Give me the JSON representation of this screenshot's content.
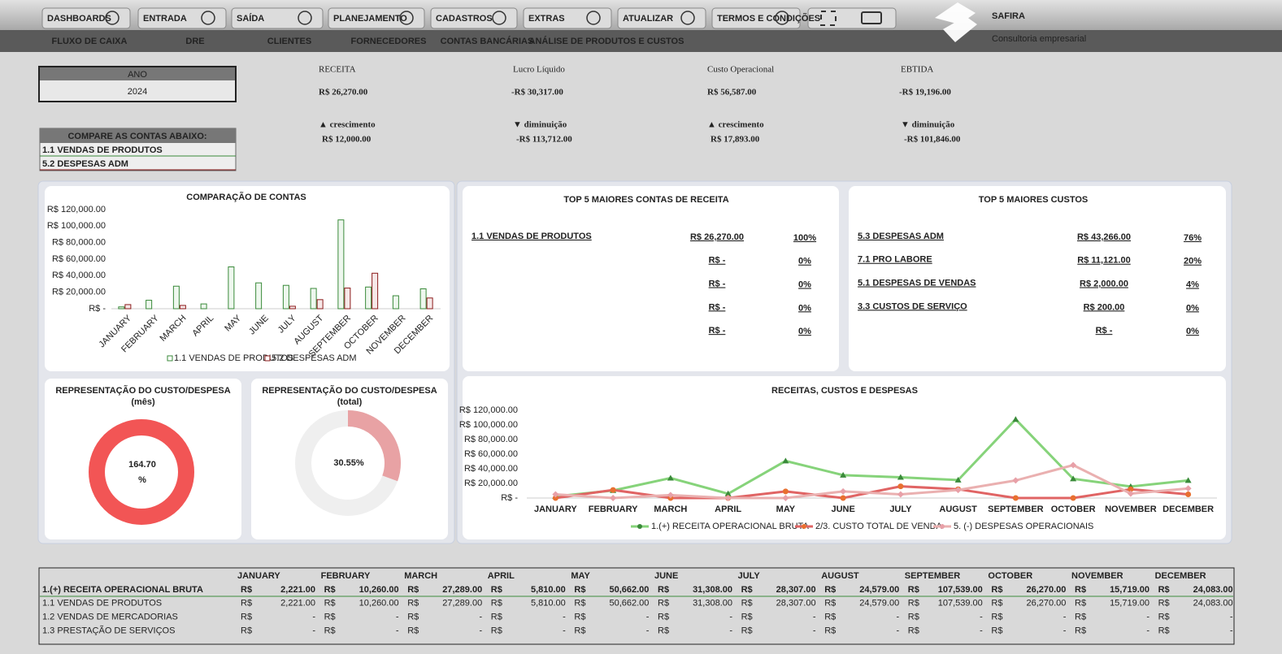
{
  "nav": {
    "buttons": [
      "DASHBOARDS",
      "ENTRADA",
      "SAÍDA",
      "PLANEJAMENTO",
      "CADASTROS",
      "EXTRAS",
      "ATUALIZAR",
      "TERMOS E CONDIÇÕES"
    ],
    "tabs": [
      "FLUXO DE CAIXA",
      "DRE",
      "CLIENTES",
      "FORNECEDORES",
      "CONTAS BANCÁRIAS",
      "ANÁLISE DE PRODUTOS E CUSTOS"
    ]
  },
  "brand": {
    "name": "SAFIRA",
    "tagline": "Consultoria empresarial"
  },
  "year": {
    "label": "ANO",
    "value": "2024"
  },
  "compare": {
    "title": "COMPARE AS CONTAS ABAIXO:",
    "items": [
      "1.1 VENDAS DE PRODUTOS",
      "5.2 DESPESAS ADM"
    ]
  },
  "kpis": [
    {
      "title": "RECEITA",
      "value": "R$ 26,270.00",
      "change_label": "▲ crescimento",
      "change": "R$ 12,000.00"
    },
    {
      "title": "Lucro Líquido",
      "value": "-R$ 30,317.00",
      "change_label": "▼ diminuição",
      "change": "-R$ 113,712.00"
    },
    {
      "title": "Custo Operacional",
      "value": "R$ 56,587.00",
      "change_label": "▲ crescimento",
      "change": "R$ 17,893.00"
    },
    {
      "title": "EBTIDA",
      "value": "-R$ 19,196.00",
      "change_label": "▼ diminuição",
      "change": "-R$ 101,846.00"
    }
  ],
  "top_revenue": {
    "title": "TOP 5 MAIORES CONTAS DE RECEITA",
    "rows": [
      {
        "name": "1.1 VENDAS DE PRODUTOS",
        "value": "R$ 26,270.00",
        "share": "100%"
      },
      {
        "value": "R$ -",
        "share": "0%"
      },
      {
        "value": "R$ -",
        "share": "0%"
      },
      {
        "value": "R$ -",
        "share": "0%"
      },
      {
        "value": "R$ -",
        "share": "0%"
      }
    ]
  },
  "top_costs": {
    "title": "TOP 5 MAIORES CUSTOS",
    "rows": [
      {
        "name": "5.3 DESPESAS ADM",
        "value": "R$ 43,266.00",
        "share": "76%"
      },
      {
        "name": "7.1 PRO LABORE",
        "value": "R$ 11,121.00",
        "share": "20%"
      },
      {
        "name": "5.1 DESPESAS DE VENDAS",
        "value": "R$ 2,000.00",
        "share": "4%"
      },
      {
        "name": "3.3 CUSTOS DE SERVIÇO",
        "value": "R$ 200.00",
        "share": "0%"
      },
      {
        "value": "R$ -",
        "share": "0%"
      }
    ]
  },
  "chart_data": [
    {
      "type": "bar",
      "title": "COMPARAÇÃO DE CONTAS",
      "categories": [
        "JANUARY",
        "FEBRUARY",
        "MARCH",
        "APRIL",
        "MAY",
        "JUNE",
        "JULY",
        "AUGUST",
        "SEPTEMBER",
        "OCTOBER",
        "NOVEMBER",
        "DECEMBER"
      ],
      "series": [
        {
          "name": "1.1 VENDAS DE PRODUTOS",
          "color": "#3a8a3a",
          "values": [
            2221,
            10260,
            27289,
            5810,
            50662,
            31308,
            28307,
            24579,
            107539,
            26270,
            15719,
            24083
          ]
        },
        {
          "name": "5.2 DESPESAS ADM",
          "color": "#8b1a1a",
          "values": [
            5000,
            0,
            4000,
            0,
            0,
            0,
            3000,
            11000,
            25000,
            43000,
            0,
            13000
          ]
        }
      ],
      "ylim": [
        0,
        120000
      ],
      "yticks": [
        {
          "value": 0,
          "label": "R$ -"
        },
        {
          "value": 20000,
          "label": "R$ 20,000.00"
        },
        {
          "value": 40000,
          "label": "R$ 40,000.00"
        },
        {
          "value": 60000,
          "label": "R$ 60,000.00"
        },
        {
          "value": 80000,
          "label": "R$ 80,000.00"
        },
        {
          "value": 100000,
          "label": "R$ 100,000.00"
        },
        {
          "value": 120000,
          "label": "R$ 120,000.00"
        }
      ]
    },
    {
      "type": "donut",
      "title": "REPRESENTAÇÃO DO CUSTO/DESPESA",
      "subtitle": "(mês)",
      "value": 164.7,
      "value_label": "164.70 %",
      "color": "#f25555"
    },
    {
      "type": "donut",
      "title": "REPRESENTAÇÃO DO CUSTO/DESPESA",
      "subtitle": "(total)",
      "value": 30.55,
      "value_label": "30.55%",
      "color": "#e8a2a4"
    },
    {
      "type": "line",
      "title": "RECEITAS, CUSTOS E DESPESAS",
      "categories": [
        "JANUARY",
        "FEBRUARY",
        "MARCH",
        "APRIL",
        "MAY",
        "JUNE",
        "JULY",
        "AUGUST",
        "SEPTEMBER",
        "OCTOBER",
        "NOVEMBER",
        "DECEMBER"
      ],
      "series": [
        {
          "name": "1.(+) RECEITA OPERACIONAL BRUTA",
          "color": "#86d37a",
          "values": [
            2221,
            10260,
            27289,
            5810,
            50662,
            31308,
            28307,
            24579,
            107539,
            26270,
            15719,
            24083
          ]
        },
        {
          "name": "2/3. CUSTO TOTAL DE VENDA",
          "color": "#e06464",
          "values": [
            0,
            11000,
            0,
            0,
            9000,
            0,
            16000,
            12000,
            0,
            0,
            12000,
            5000
          ]
        },
        {
          "name": "5. (-) DESPESAS OPERACIONAIS",
          "color": "#eab0b0",
          "values": [
            5000,
            0,
            4000,
            0,
            0,
            9000,
            5000,
            11000,
            24000,
            45000,
            6000,
            13000
          ]
        }
      ],
      "ylim": [
        0,
        120000
      ],
      "yticks": [
        {
          "value": 0,
          "label": "R$ -"
        },
        {
          "value": 20000,
          "label": "R$ 20,000.00"
        },
        {
          "value": 40000,
          "label": "R$ 40,000.00"
        },
        {
          "value": 60000,
          "label": "R$ 60,000.00"
        },
        {
          "value": 80000,
          "label": "R$ 80,000.00"
        },
        {
          "value": 100000,
          "label": "R$ 100,000.00"
        },
        {
          "value": 120000,
          "label": "R$ 120,000.00"
        }
      ]
    }
  ],
  "table": {
    "months": [
      "JANUARY",
      "FEBRUARY",
      "MARCH",
      "APRIL",
      "MAY",
      "JUNE",
      "JULY",
      "AUGUST",
      "SEPTEMBER",
      "OCTOBER",
      "NOVEMBER",
      "DECEMBER"
    ],
    "currency": "R$",
    "rows": [
      {
        "label": "1.(+) RECEITA OPERACIONAL BRUTA",
        "values": [
          "2,221.00",
          "10,260.00",
          "27,289.00",
          "5,810.00",
          "50,662.00",
          "31,308.00",
          "28,307.00",
          "24,579.00",
          "107,539.00",
          "26,270.00",
          "15,719.00",
          "24,083.00"
        ]
      },
      {
        "label": "1.1 VENDAS DE PRODUTOS",
        "values": [
          "2,221.00",
          "10,260.00",
          "27,289.00",
          "5,810.00",
          "50,662.00",
          "31,308.00",
          "28,307.00",
          "24,579.00",
          "107,539.00",
          "26,270.00",
          "15,719.00",
          "24,083.00"
        ]
      },
      {
        "label": "1.2 VENDAS DE MERCADORIAS",
        "values": [
          "-",
          "-",
          "-",
          "-",
          "-",
          "-",
          "-",
          "-",
          "-",
          "-",
          "-",
          "-"
        ]
      },
      {
        "label": "1.3 PRESTAÇÃO DE SERVIÇOS",
        "values": [
          "-",
          "-",
          "-",
          "-",
          "-",
          "-",
          "-",
          "-",
          "-",
          "-",
          "-",
          "-"
        ]
      }
    ]
  }
}
